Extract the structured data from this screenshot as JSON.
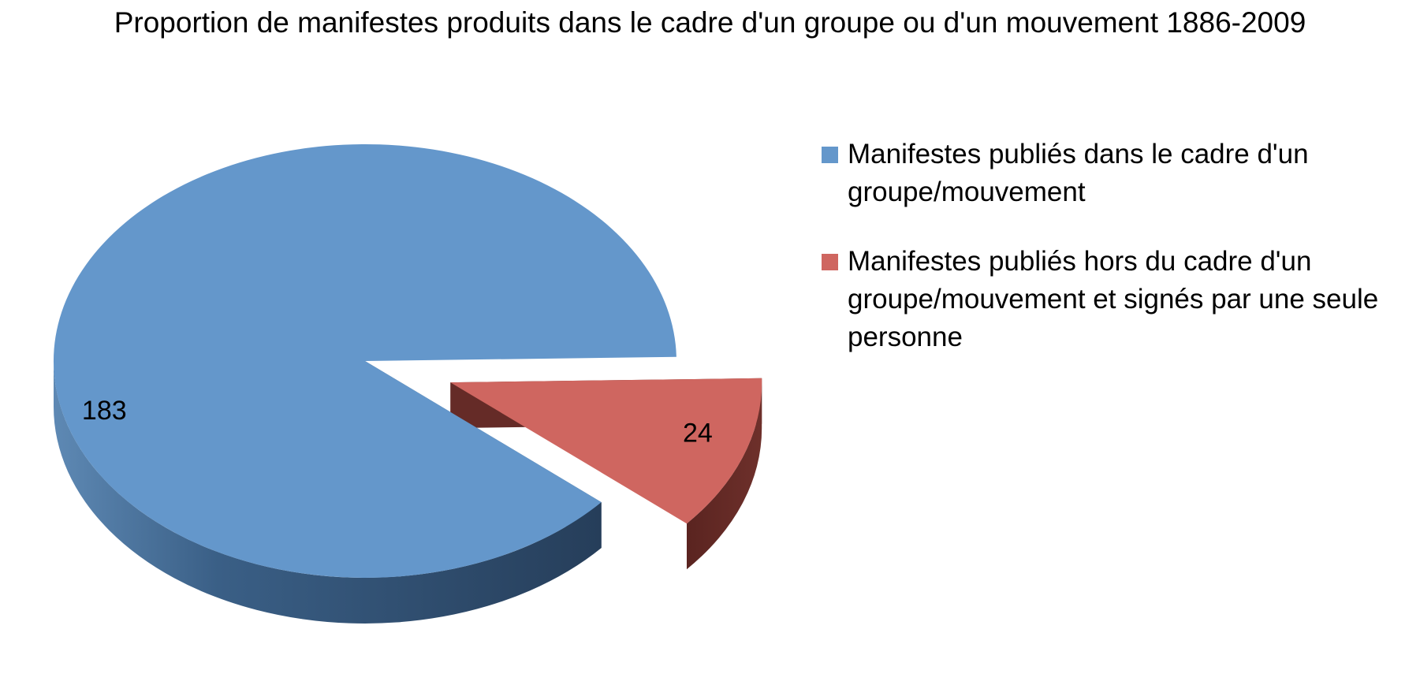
{
  "chart_data": {
    "type": "pie",
    "title": "Proportion de manifestes produits dans le cadre d'un groupe ou d'un mouvement 1886-2009",
    "legend_position": "right",
    "style": "3d-exploded",
    "slices": [
      {
        "label": "Manifestes publiés dans le cadre d'un groupe/mouvement",
        "value": 183,
        "value_label": "183",
        "color": "#6497CB",
        "side_color": "#2F4E6E",
        "exploded": false
      },
      {
        "label": "Manifestes publiés hors du cadre d'un groupe/mouvement et signés par une seule personne",
        "value": 24,
        "value_label": "24",
        "color": "#CF6660",
        "side_color": "#652B27",
        "exploded": true
      }
    ]
  }
}
